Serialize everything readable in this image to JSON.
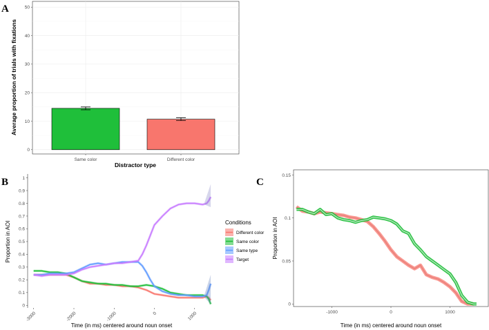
{
  "chart_data": [
    {
      "panel": "A",
      "type": "bar",
      "xlabel": "Distractor type",
      "ylabel": "Average proportion of trials with fixations",
      "categories": [
        "Same color",
        "Different color"
      ],
      "values": [
        14.5,
        10.7
      ],
      "errors": [
        0.5,
        0.5
      ],
      "colors": [
        "#1fbf3a",
        "#f8766d"
      ],
      "ylim": [
        -1.5,
        52
      ],
      "yticks": [
        0,
        10,
        20,
        30,
        40,
        50
      ],
      "grid": true
    },
    {
      "panel": "B",
      "type": "line",
      "xlabel": "Time (in ms) centered around noun onset",
      "ylabel": "Proportion in AOI",
      "xlim": [
        -3150,
        1450
      ],
      "ylim": [
        -0.02,
        1.03
      ],
      "xticks": [
        -3000,
        -2000,
        -1000,
        0,
        1000
      ],
      "yticks": [
        "0",
        "0.1",
        "0.2",
        "0.3",
        "0.4",
        "0.5",
        "0.6",
        "0.7",
        "0.8",
        "0.9",
        "1"
      ],
      "legend": {
        "title": "Conditions",
        "entries": [
          "Different color",
          "Same color",
          "Same type",
          "Target"
        ]
      },
      "series": [
        {
          "name": "Different color",
          "color": "#f8766d",
          "x": [
            -3000,
            -2800,
            -2600,
            -2400,
            -2200,
            -2000,
            -1800,
            -1600,
            -1400,
            -1200,
            -1000,
            -800,
            -600,
            -400,
            -200,
            0,
            200,
            400,
            600,
            800,
            1000,
            1200,
            1300,
            1350,
            1400
          ],
          "y": [
            0.24,
            0.24,
            0.24,
            0.24,
            0.24,
            0.22,
            0.19,
            0.17,
            0.17,
            0.16,
            0.16,
            0.15,
            0.15,
            0.14,
            0.12,
            0.09,
            0.08,
            0.07,
            0.06,
            0.06,
            0.06,
            0.06,
            0.07,
            0.06,
            0.04
          ]
        },
        {
          "name": "Same color",
          "color": "#1fbf3a",
          "x": [
            -3000,
            -2900,
            -2800,
            -2600,
            -2400,
            -2200,
            -2000,
            -1800,
            -1600,
            -1400,
            -1200,
            -1000,
            -800,
            -600,
            -400,
            -200,
            0,
            200,
            400,
            600,
            800,
            1000,
            1200,
            1300,
            1350,
            1400
          ],
          "y": [
            0.27,
            0.27,
            0.27,
            0.26,
            0.26,
            0.25,
            0.22,
            0.19,
            0.18,
            0.17,
            0.17,
            0.16,
            0.16,
            0.15,
            0.15,
            0.16,
            0.15,
            0.13,
            0.1,
            0.09,
            0.08,
            0.08,
            0.08,
            0.07,
            0.05,
            0.01
          ]
        },
        {
          "name": "Same type",
          "color": "#619cff",
          "x": [
            -3000,
            -2800,
            -2600,
            -2400,
            -2200,
            -2000,
            -1800,
            -1600,
            -1400,
            -1200,
            -1000,
            -800,
            -600,
            -400,
            -300,
            -200,
            -100,
            0,
            200,
            400,
            600,
            800,
            1000,
            1200,
            1300,
            1350,
            1400
          ],
          "y": [
            0.24,
            0.24,
            0.25,
            0.25,
            0.25,
            0.26,
            0.29,
            0.32,
            0.33,
            0.32,
            0.33,
            0.34,
            0.34,
            0.34,
            0.31,
            0.26,
            0.2,
            0.15,
            0.11,
            0.09,
            0.08,
            0.08,
            0.07,
            0.07,
            0.08,
            0.12,
            0.17
          ]
        },
        {
          "name": "Target",
          "color": "#c77cff",
          "x": [
            -3000,
            -2800,
            -2600,
            -2400,
            -2200,
            -2000,
            -1800,
            -1600,
            -1400,
            -1200,
            -1000,
            -800,
            -600,
            -400,
            -300,
            -200,
            -100,
            0,
            200,
            400,
            600,
            800,
            1000,
            1200,
            1300,
            1350,
            1400
          ],
          "y": [
            0.24,
            0.23,
            0.24,
            0.24,
            0.24,
            0.25,
            0.28,
            0.3,
            0.31,
            0.32,
            0.33,
            0.33,
            0.34,
            0.35,
            0.4,
            0.47,
            0.55,
            0.63,
            0.7,
            0.76,
            0.79,
            0.8,
            0.8,
            0.79,
            0.8,
            0.82,
            0.85
          ]
        }
      ]
    },
    {
      "panel": "C",
      "type": "line",
      "xlabel": "Time (in ms) centered around noun onset",
      "ylabel": "Proportion in AOI",
      "xlim": [
        -1650,
        1650
      ],
      "ylim": [
        -0.003,
        0.156
      ],
      "xticks": [
        -1000,
        0,
        1000
      ],
      "yticks": [
        "0",
        "0.05",
        "0.1",
        "0.15"
      ],
      "series": [
        {
          "name": "Different color",
          "color": "#f8766d",
          "x": [
            -1600,
            -1500,
            -1400,
            -1300,
            -1200,
            -1100,
            -1000,
            -900,
            -800,
            -700,
            -600,
            -500,
            -400,
            -300,
            -200,
            -100,
            0,
            100,
            200,
            300,
            400,
            500,
            600,
            700,
            800,
            900,
            1000,
            1100,
            1200,
            1300,
            1400
          ],
          "y": [
            0.113,
            0.108,
            0.107,
            0.105,
            0.107,
            0.106,
            0.105,
            0.104,
            0.103,
            0.101,
            0.1,
            0.098,
            0.096,
            0.09,
            0.082,
            0.073,
            0.063,
            0.055,
            0.05,
            0.045,
            0.041,
            0.045,
            0.034,
            0.031,
            0.029,
            0.025,
            0.02,
            0.013,
            0.003,
            0.0,
            0.0
          ]
        },
        {
          "name": "Same color",
          "color": "#1fbf3a",
          "x": [
            -1600,
            -1500,
            -1400,
            -1300,
            -1200,
            -1100,
            -1000,
            -900,
            -800,
            -700,
            -600,
            -500,
            -400,
            -300,
            -200,
            -100,
            0,
            100,
            200,
            300,
            400,
            500,
            600,
            700,
            800,
            900,
            1000,
            1100,
            1200,
            1300,
            1400,
            1450
          ],
          "y": [
            0.11,
            0.11,
            0.107,
            0.105,
            0.11,
            0.104,
            0.105,
            0.1,
            0.098,
            0.097,
            0.095,
            0.097,
            0.098,
            0.101,
            0.1,
            0.099,
            0.097,
            0.093,
            0.085,
            0.082,
            0.07,
            0.063,
            0.055,
            0.05,
            0.045,
            0.04,
            0.035,
            0.025,
            0.01,
            0.002,
            0.0,
            0.0
          ]
        }
      ]
    }
  ]
}
